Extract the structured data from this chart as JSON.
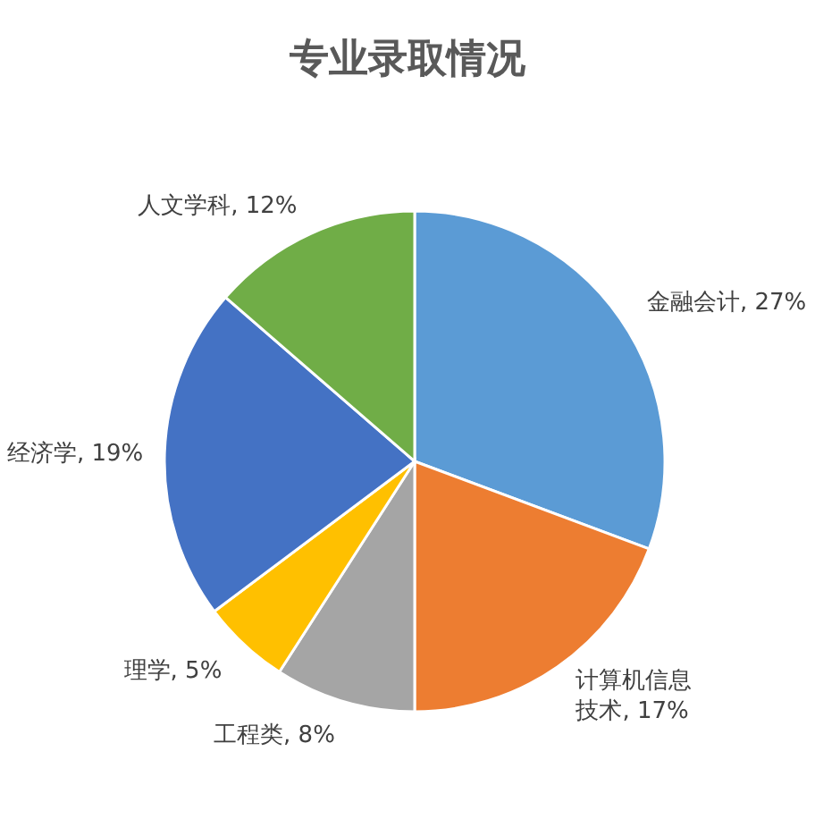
{
  "chart_data": {
    "type": "pie",
    "title": "专业录取情况",
    "categories": [
      "金融会计",
      "计算机信息技术",
      "工程类",
      "理学",
      "经济学",
      "人文学科"
    ],
    "values": [
      27,
      17,
      8,
      5,
      19,
      12
    ],
    "value_labels": [
      "27%",
      "17%",
      "8%",
      "5%",
      "19%",
      "12%"
    ],
    "colors": [
      "#5b9bd5",
      "#ed7d31",
      "#a5a5a5",
      "#ffc000",
      "#4472c4",
      "#70ad47"
    ]
  }
}
